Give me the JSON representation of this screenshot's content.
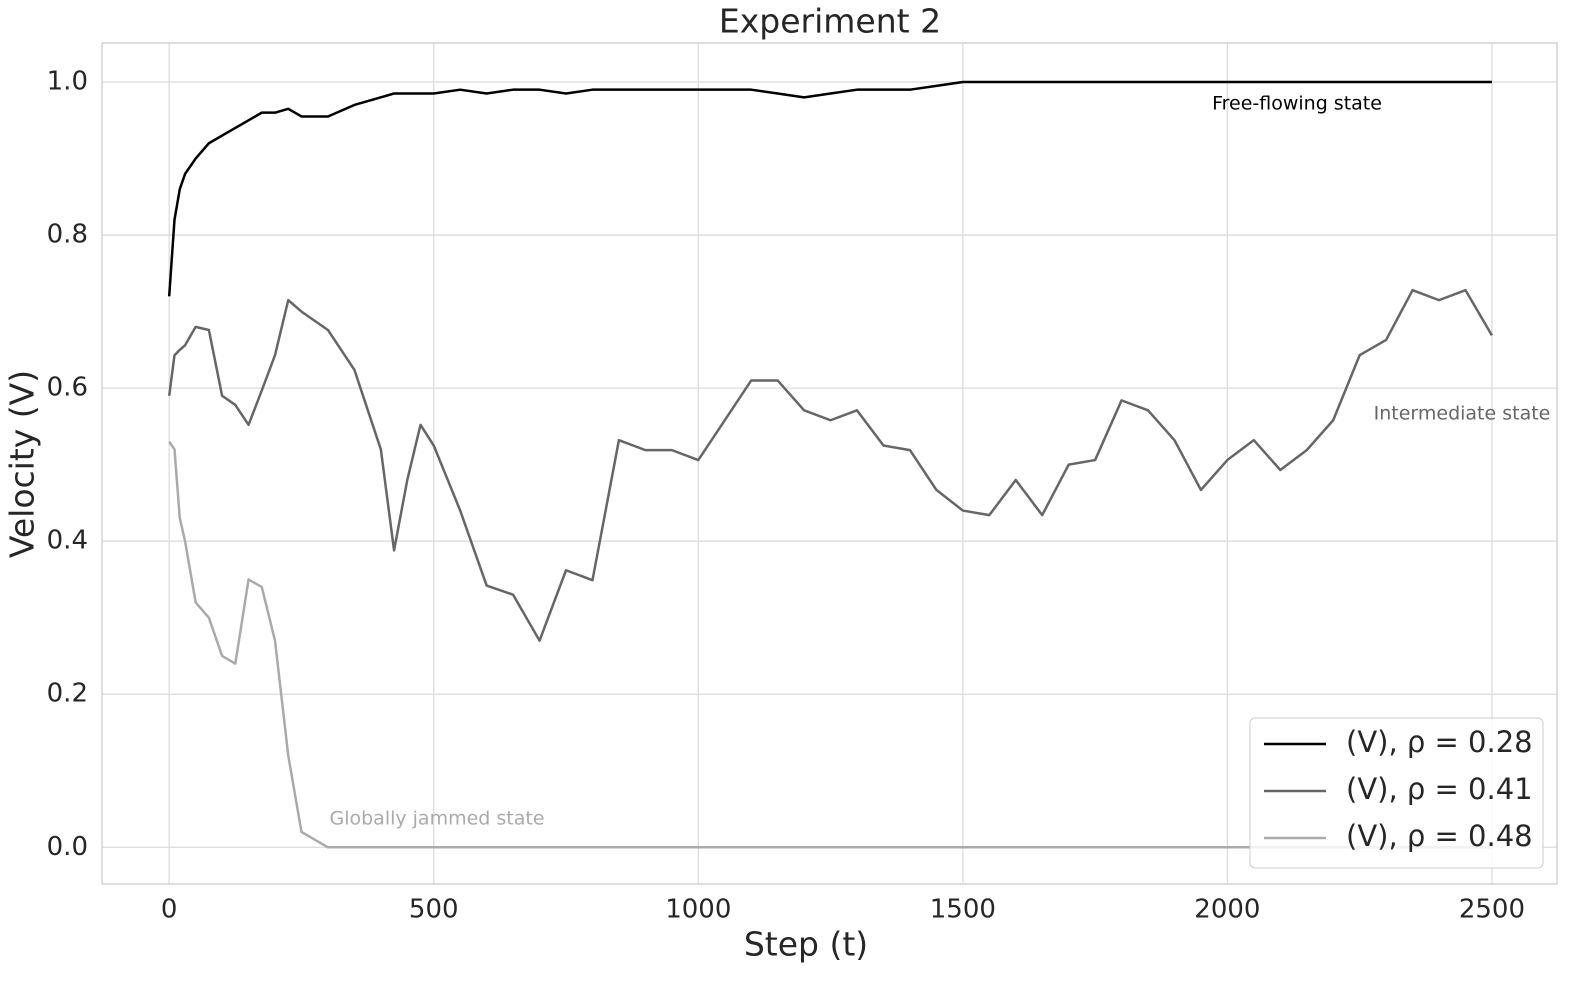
{
  "chart_data": {
    "type": "line",
    "title": "Experiment 2",
    "x_label": "Step (t)",
    "y_label": "Velocity (V)",
    "x": [
      0,
      10,
      20,
      30,
      50,
      75,
      100,
      125,
      150,
      175,
      200,
      225,
      250,
      300,
      350,
      400,
      425,
      450,
      475,
      500,
      550,
      600,
      650,
      700,
      750,
      800,
      850,
      900,
      950,
      1000,
      1050,
      1100,
      1150,
      1200,
      1250,
      1300,
      1350,
      1400,
      1450,
      1500,
      1550,
      1600,
      1650,
      1700,
      1750,
      1800,
      1850,
      1900,
      1950,
      2000,
      2050,
      2100,
      2150,
      2200,
      2250,
      2300,
      2350,
      2400,
      2450,
      2500
    ],
    "series": [
      {
        "name": "(V), ρ = 0.28",
        "color": "#000000",
        "values": [
          0.72,
          0.82,
          0.86,
          0.88,
          0.9,
          0.92,
          0.93,
          0.94,
          0.95,
          0.96,
          0.96,
          0.965,
          0.955,
          0.955,
          0.97,
          0.98,
          0.985,
          0.985,
          0.985,
          0.985,
          0.99,
          0.985,
          0.99,
          0.99,
          0.985,
          0.99,
          0.99,
          0.99,
          0.99,
          0.99,
          0.99,
          0.99,
          0.985,
          0.98,
          0.985,
          0.99,
          0.99,
          0.99,
          0.995,
          1.0,
          1.0,
          1.0,
          1.0,
          1.0,
          1.0,
          1.0,
          1.0,
          1.0,
          1.0,
          1.0,
          1.0,
          1.0,
          1.0,
          1.0,
          1.0,
          1.0,
          1.0,
          1.0,
          1.0,
          1.0
        ]
      },
      {
        "name": "(V), ρ = 0.41",
        "color": "#666666",
        "values": [
          0.59,
          0.643,
          0.65,
          0.656,
          0.68,
          0.676,
          0.59,
          0.578,
          0.552,
          0.597,
          0.643,
          0.715,
          0.7,
          0.676,
          0.624,
          0.52,
          0.388,
          0.48,
          0.552,
          0.525,
          0.44,
          0.342,
          0.33,
          0.27,
          0.362,
          0.349,
          0.532,
          0.519,
          0.519,
          0.506,
          0.558,
          0.61,
          0.61,
          0.571,
          0.558,
          0.571,
          0.525,
          0.519,
          0.467,
          0.44,
          0.434,
          0.48,
          0.434,
          0.5,
          0.506,
          0.584,
          0.571,
          0.532,
          0.467,
          0.506,
          0.532,
          0.493,
          0.519,
          0.558,
          0.643,
          0.663,
          0.728,
          0.715,
          0.728,
          0.669
        ]
      },
      {
        "name": "(V), ρ = 0.48",
        "color": "#aaaaaa",
        "values": [
          0.53,
          0.52,
          0.43,
          0.4,
          0.32,
          0.3,
          0.25,
          0.24,
          0.35,
          0.34,
          0.27,
          0.12,
          0.02,
          0,
          0,
          0,
          0,
          0,
          0,
          0,
          0,
          0,
          0,
          0,
          0,
          0,
          0,
          0,
          0,
          0,
          0,
          0,
          0,
          0,
          0,
          0,
          0,
          0,
          0,
          0,
          0,
          0,
          0,
          0,
          0,
          0,
          0,
          0,
          0,
          0,
          0,
          0,
          0,
          0,
          0,
          0,
          0,
          0,
          0,
          0
        ]
      }
    ],
    "annotations": [
      {
        "text": "Free-flowing state",
        "color": "#000000"
      },
      {
        "text": "Intermediate state",
        "color": "#666666"
      },
      {
        "text": "Globally jammed state",
        "color": "#aaaaaa"
      }
    ],
    "xlim": [
      -127,
      2623
    ],
    "ylim": [
      -0.048,
      1.051
    ],
    "xticks": [
      0,
      500,
      1000,
      1500,
      2000,
      2500
    ],
    "yticks": [
      {
        "value": 0,
        "label": "0.0"
      },
      {
        "value": 0.2,
        "label": "0.2"
      },
      {
        "value": 0.4,
        "label": "0.4"
      },
      {
        "value": 0.6,
        "label": "0.6"
      },
      {
        "value": 0.8,
        "label": "0.8"
      },
      {
        "value": 1.0,
        "label": "1.0"
      }
    ],
    "grid": true,
    "legend": "lower right"
  }
}
